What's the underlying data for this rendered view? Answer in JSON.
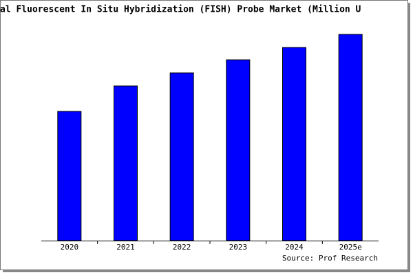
{
  "chart_data": {
    "type": "bar",
    "title": "al Fluorescent In Situ Hybridization (FISH) Probe Market (Million U",
    "categories": [
      "2020",
      "2021",
      "2022",
      "2023",
      "2024",
      "2025e"
    ],
    "values": [
      188,
      225,
      244,
      263,
      281,
      300
    ],
    "color": "#0000ff",
    "source": "Source: Prof Research"
  }
}
